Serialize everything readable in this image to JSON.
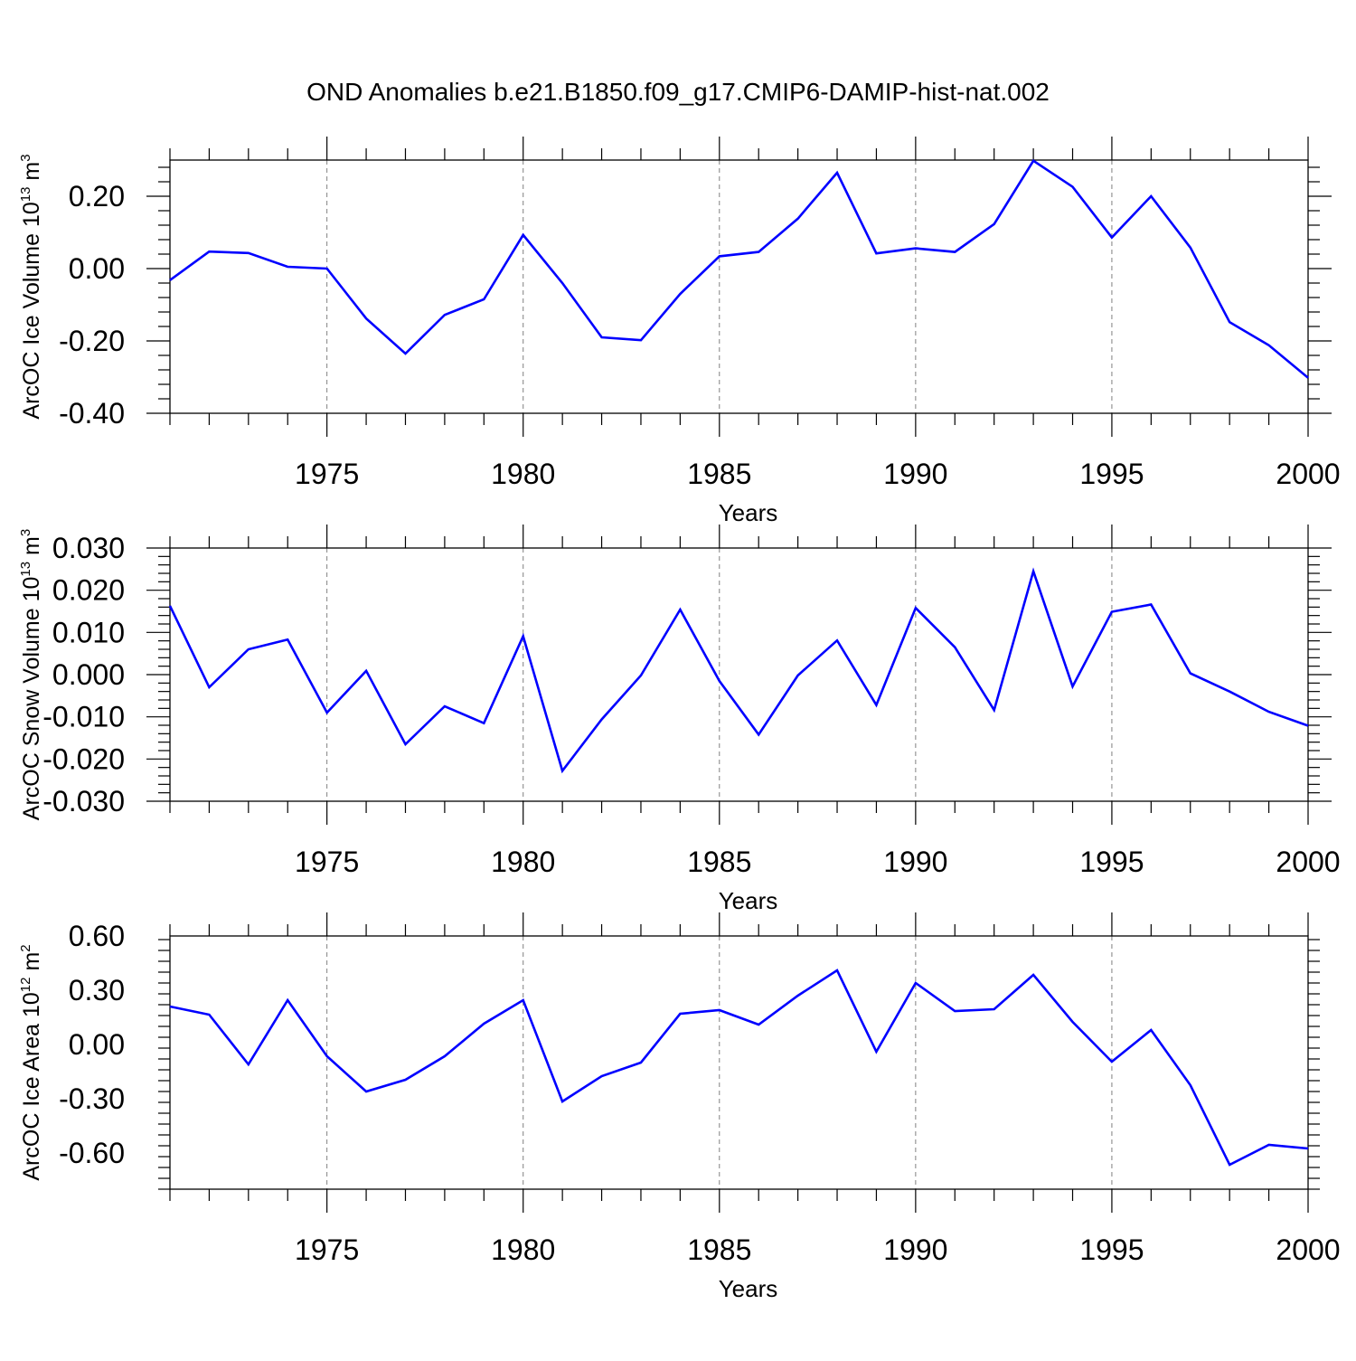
{
  "colors": {
    "series": "#0000ff",
    "grid": "#808080",
    "axis": "#000000"
  },
  "chart_data": {
    "title": "OND Anomalies b.e21.B1850.f09_g17.CMIP6-DAMIP-hist-nat.002",
    "panels": [
      {
        "type": "line",
        "ylabel_main": "ArcOC Ice Volume 10",
        "ylabel_exp": "13",
        "ylabel_tail": " m",
        "ylabel_tail_exp": "3",
        "xlabel": "Years",
        "xlim": [
          1971,
          2000
        ],
        "ylim": [
          -0.4,
          0.3
        ],
        "yticks": [
          -0.4,
          -0.2,
          0.0,
          0.2
        ],
        "ytick_labels": [
          "-0.40",
          "-0.20",
          "0.00",
          "0.20"
        ],
        "xticks": [
          1975,
          1980,
          1985,
          1990,
          1995,
          2000
        ],
        "xtick_labels": [
          "1975",
          "1980",
          "1985",
          "1990",
          "1995",
          "2000"
        ],
        "grid_x": true,
        "x": [
          1971,
          1972,
          1973,
          1974,
          1975,
          1976,
          1977,
          1978,
          1979,
          1980,
          1981,
          1982,
          1983,
          1984,
          1985,
          1986,
          1987,
          1988,
          1989,
          1990,
          1991,
          1992,
          1993,
          1994,
          1995,
          1996,
          1997,
          1998,
          1999,
          2000
        ],
        "values": [
          -0.032,
          0.047,
          0.043,
          0.005,
          0.0,
          -0.138,
          -0.235,
          -0.128,
          -0.085,
          0.093,
          -0.04,
          -0.19,
          -0.198,
          -0.07,
          0.034,
          0.046,
          0.138,
          0.265,
          0.042,
          0.056,
          0.046,
          0.123,
          0.298,
          0.226,
          0.086,
          0.2,
          0.058,
          -0.148,
          -0.212,
          -0.302
        ]
      },
      {
        "type": "line",
        "ylabel_main": "ArcOC Snow Volume 10",
        "ylabel_exp": "13",
        "ylabel_tail": " m",
        "ylabel_tail_exp": "3",
        "xlabel": "Years",
        "xlim": [
          1971,
          2000
        ],
        "ylim": [
          -0.03,
          0.03
        ],
        "yticks": [
          -0.03,
          -0.02,
          -0.01,
          0.0,
          0.01,
          0.02,
          0.03
        ],
        "ytick_labels": [
          "-0.030",
          "-0.020",
          "-0.010",
          "0.000",
          "0.010",
          "0.020",
          "0.030"
        ],
        "xticks": [
          1975,
          1980,
          1985,
          1990,
          1995,
          2000
        ],
        "xtick_labels": [
          "1975",
          "1980",
          "1985",
          "1990",
          "1995",
          "2000"
        ],
        "grid_x": true,
        "x": [
          1971,
          1972,
          1973,
          1974,
          1975,
          1976,
          1977,
          1978,
          1979,
          1980,
          1981,
          1982,
          1983,
          1984,
          1985,
          1986,
          1987,
          1988,
          1989,
          1990,
          1991,
          1992,
          1993,
          1994,
          1995,
          1996,
          1997,
          1998,
          1999,
          2000
        ],
        "values": [
          0.0163,
          -0.003,
          0.006,
          0.0083,
          -0.009,
          0.0009,
          -0.0165,
          -0.0075,
          -0.0115,
          0.0091,
          -0.0228,
          -0.0106,
          -0.0002,
          0.0154,
          -0.0015,
          -0.0142,
          -0.0002,
          0.0081,
          -0.0072,
          0.0158,
          0.0065,
          -0.0084,
          0.0245,
          -0.0028,
          0.0149,
          0.0166,
          0.0003,
          -0.004,
          -0.0088,
          -0.0121
        ]
      },
      {
        "type": "line",
        "ylabel_main": "ArcOC Ice Area 10",
        "ylabel_exp": "12",
        "ylabel_tail": " m",
        "ylabel_tail_exp": "2",
        "xlabel": "Years",
        "xlim": [
          1971,
          2000
        ],
        "ylim": [
          -0.8,
          0.6
        ],
        "yticks": [
          -0.6,
          -0.3,
          0.0,
          0.3,
          0.6
        ],
        "ytick_labels": [
          "-0.60",
          "-0.30",
          "0.00",
          "0.30",
          "0.60"
        ],
        "xticks": [
          1975,
          1980,
          1985,
          1990,
          1995,
          2000
        ],
        "xtick_labels": [
          "1975",
          "1980",
          "1985",
          "1990",
          "1995",
          "2000"
        ],
        "grid_x": true,
        "x": [
          1971,
          1972,
          1973,
          1974,
          1975,
          1976,
          1977,
          1978,
          1979,
          1980,
          1981,
          1982,
          1983,
          1984,
          1985,
          1986,
          1987,
          1988,
          1989,
          1990,
          1991,
          1992,
          1993,
          1994,
          1995,
          1996,
          1997,
          1998,
          1999,
          2000
        ],
        "values": [
          0.21,
          0.165,
          -0.11,
          0.245,
          -0.065,
          -0.26,
          -0.195,
          -0.065,
          0.115,
          0.245,
          -0.315,
          -0.175,
          -0.1,
          0.17,
          0.19,
          0.11,
          0.27,
          0.41,
          -0.04,
          0.34,
          0.185,
          0.195,
          0.385,
          0.125,
          -0.095,
          0.08,
          -0.225,
          -0.665,
          -0.555,
          -0.575
        ]
      }
    ]
  }
}
